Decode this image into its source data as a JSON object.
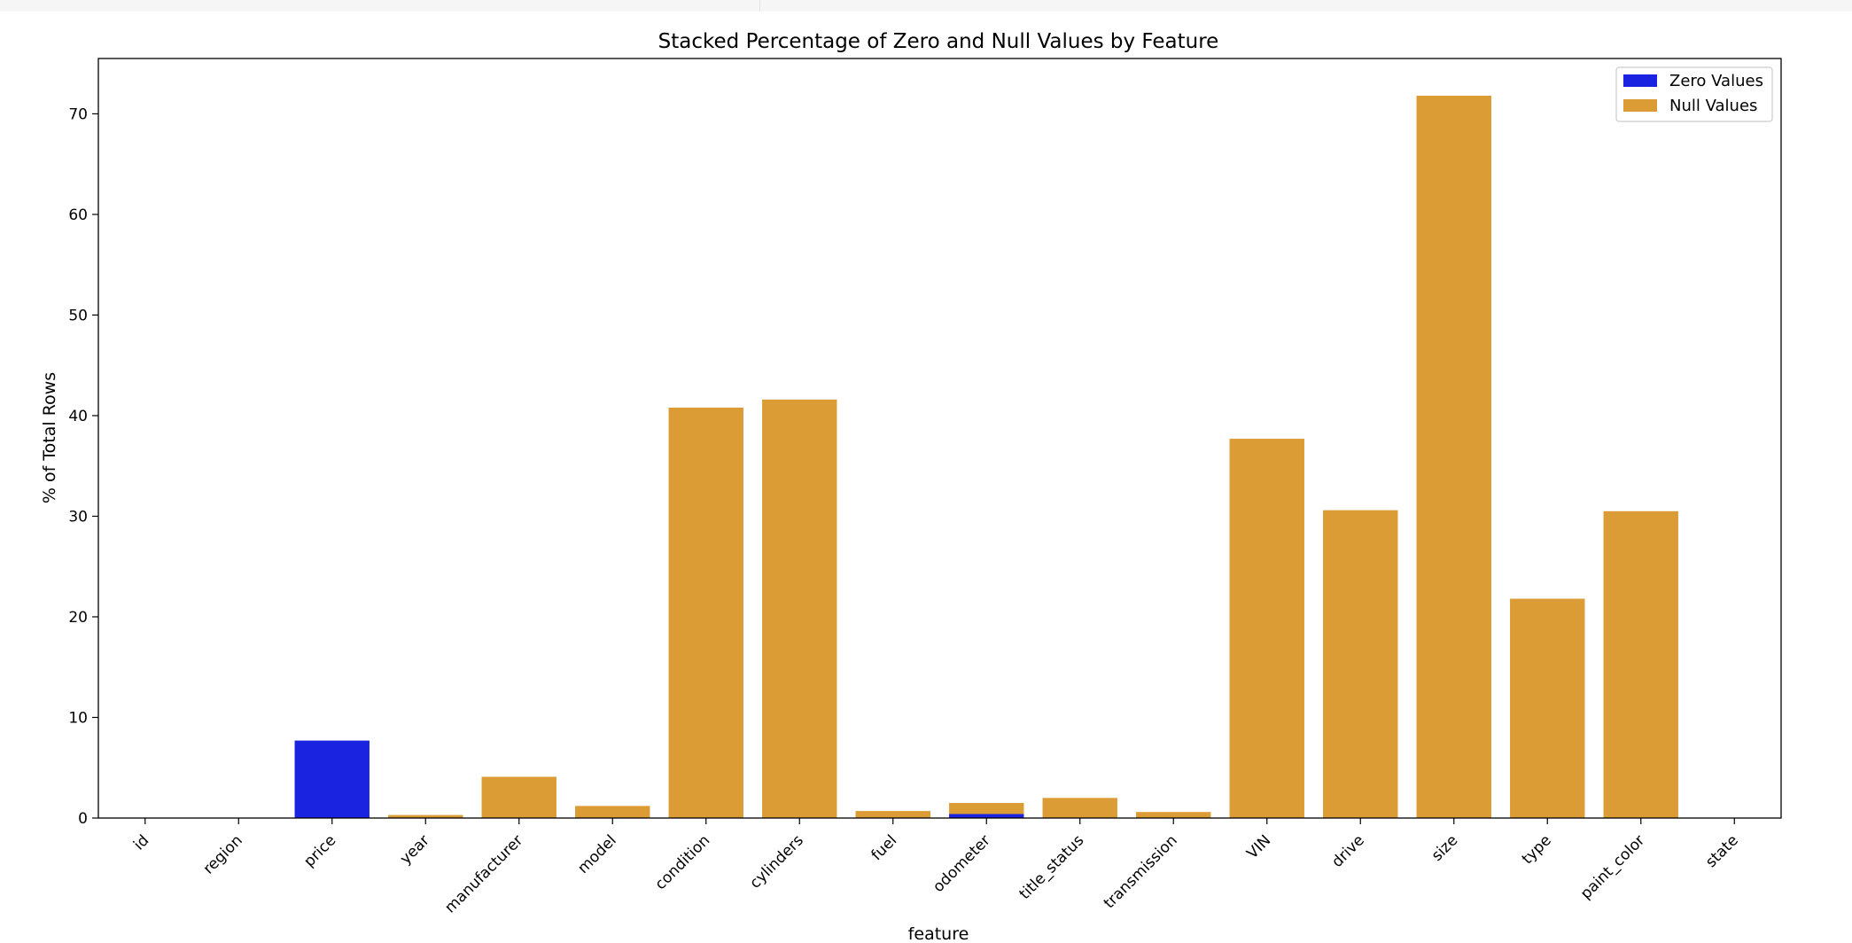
{
  "chart_data": {
    "type": "bar",
    "stacked": true,
    "title": "Stacked Percentage of Zero and Null Values by Feature",
    "xlabel": "feature",
    "ylabel": "% of Total Rows",
    "ylim": [
      0,
      75.5
    ],
    "yticks": [
      0,
      10,
      20,
      30,
      40,
      50,
      60,
      70
    ],
    "categories": [
      "id",
      "region",
      "price",
      "year",
      "manufacturer",
      "model",
      "condition",
      "cylinders",
      "fuel",
      "odometer",
      "title_status",
      "transmission",
      "VIN",
      "drive",
      "size",
      "type",
      "paint_color",
      "state"
    ],
    "series": [
      {
        "name": "Zero Values",
        "color": "#1a23e0",
        "values": [
          0,
          0,
          7.7,
          0,
          0,
          0,
          0,
          0,
          0,
          0.4,
          0,
          0,
          0,
          0,
          0,
          0,
          0,
          0
        ]
      },
      {
        "name": "Null Values",
        "color": "#dc9c35",
        "values": [
          0,
          0,
          0,
          0.3,
          4.1,
          1.2,
          40.8,
          41.6,
          0.7,
          1.1,
          2.0,
          0.6,
          37.7,
          30.6,
          71.8,
          21.8,
          30.5,
          0
        ]
      }
    ],
    "legend_position": "top-right",
    "grid": false
  }
}
